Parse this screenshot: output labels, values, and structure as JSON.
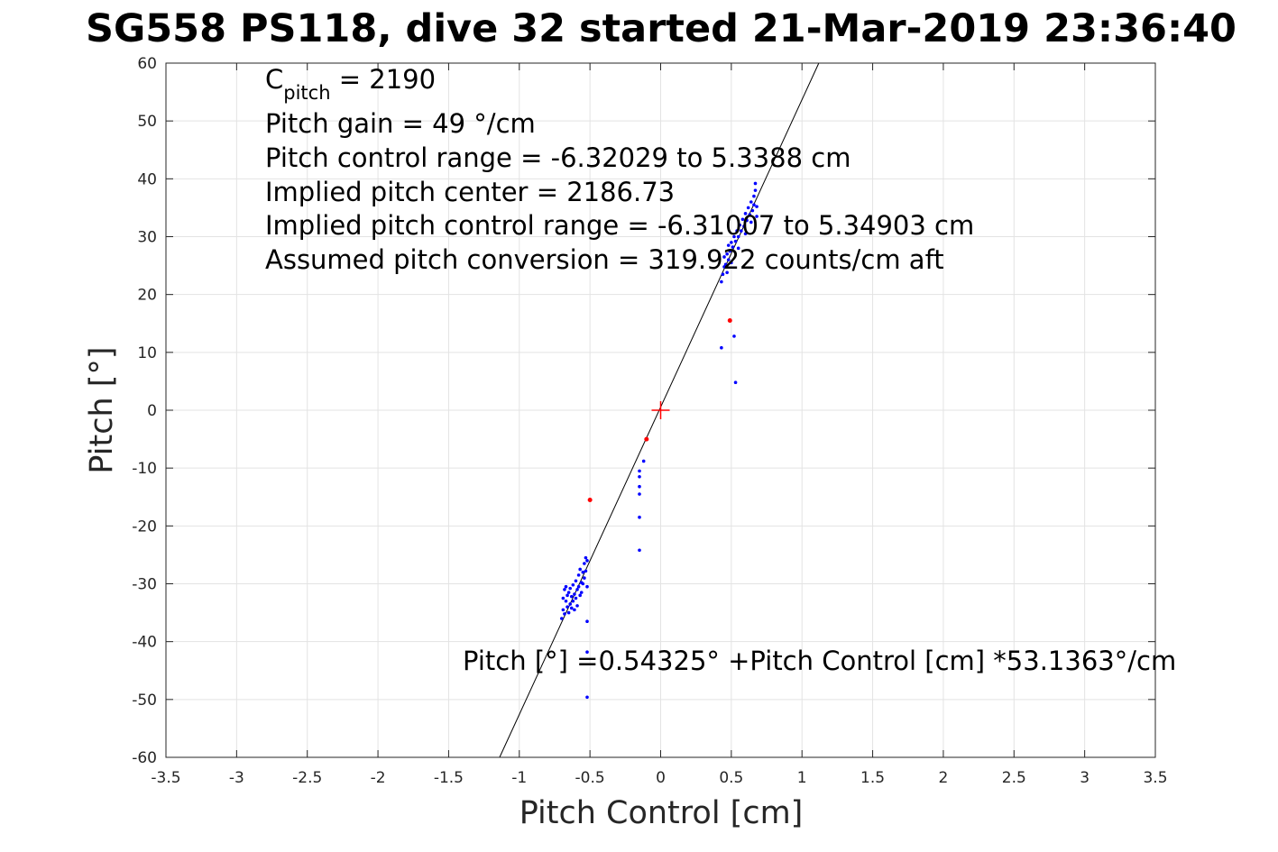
{
  "chart_data": {
    "type": "scatter",
    "title": "SG558 PS118, dive 32 started 21-Mar-2019 23:36:40",
    "xlabel": "Pitch Control [cm]",
    "ylabel": "Pitch [°]",
    "xlim": [
      -3.5,
      3.5
    ],
    "ylim": [
      -60,
      60
    ],
    "xticks": [
      -3.5,
      -3,
      -2.5,
      -2,
      -1.5,
      -1,
      -0.5,
      0,
      0.5,
      1,
      1.5,
      2,
      2.5,
      3,
      3.5
    ],
    "yticks": [
      -60,
      -50,
      -40,
      -30,
      -20,
      -10,
      0,
      10,
      20,
      30,
      40,
      50,
      60
    ],
    "xtick_labels": [
      "-3.5",
      "-3",
      "-2.5",
      "-2",
      "-1.5",
      "-1",
      "-0.5",
      "0",
      "0.5",
      "1",
      "1.5",
      "2",
      "2.5",
      "3",
      "3.5"
    ],
    "ytick_labels": [
      "-60",
      "-50",
      "-40",
      "-30",
      "-20",
      "-10",
      "0",
      "10",
      "20",
      "30",
      "40",
      "50",
      "60"
    ],
    "grid": true,
    "annotations": {
      "cpitch_main": "C",
      "cpitch_sub": "pitch",
      "cpitch_value": " = 2190",
      "lines": [
        "Pitch gain = 49 °/cm",
        "Pitch control range = -6.32029 to 5.3388 cm",
        "Implied pitch center = 2186.73",
        "Implied pitch control range = -6.31007 to 5.34903 cm",
        "Assumed pitch conversion = 319.922 counts/cm aft"
      ],
      "fit_equation": "Pitch [°] =0.54325° +Pitch Control [cm] *53.1363°/cm"
    },
    "fit_line": {
      "intercept": 0.54325,
      "slope": 53.1363,
      "color": "#000000"
    },
    "center_marker": {
      "x": 0,
      "y": 0,
      "color": "#ff0000"
    },
    "series": [
      {
        "color": "#0000ff",
        "points": [
          [
            -0.7,
            -36.0
          ],
          [
            -0.69,
            -34.5
          ],
          [
            -0.69,
            -32.5
          ],
          [
            -0.68,
            -31.0
          ],
          [
            -0.68,
            -35.2
          ],
          [
            -0.67,
            -33.0
          ],
          [
            -0.67,
            -30.5
          ],
          [
            -0.66,
            -34.0
          ],
          [
            -0.66,
            -32.0
          ],
          [
            -0.65,
            -35.0
          ],
          [
            -0.65,
            -31.5
          ],
          [
            -0.64,
            -33.5
          ],
          [
            -0.64,
            -30.8
          ],
          [
            -0.63,
            -34.2
          ],
          [
            -0.63,
            -32.2
          ],
          [
            -0.62,
            -30.2
          ],
          [
            -0.62,
            -33.0
          ],
          [
            -0.61,
            -31.8
          ],
          [
            -0.61,
            -34.5
          ],
          [
            -0.6,
            -29.5
          ],
          [
            -0.6,
            -32.5
          ],
          [
            -0.59,
            -31.0
          ],
          [
            -0.59,
            -33.8
          ],
          [
            -0.58,
            -28.5
          ],
          [
            -0.58,
            -30.5
          ],
          [
            -0.57,
            -32.0
          ],
          [
            -0.57,
            -27.5
          ],
          [
            -0.56,
            -29.8
          ],
          [
            -0.56,
            -31.5
          ],
          [
            -0.55,
            -28.0
          ],
          [
            -0.55,
            -30.0
          ],
          [
            -0.54,
            -26.5
          ],
          [
            -0.54,
            -29.0
          ],
          [
            -0.53,
            -25.5
          ],
          [
            -0.53,
            -27.8
          ],
          [
            -0.52,
            -26.0
          ],
          [
            -0.52,
            -30.5
          ],
          [
            -0.52,
            -36.5
          ],
          [
            -0.52,
            -41.8
          ],
          [
            -0.52,
            -49.6
          ],
          [
            -0.15,
            -10.5
          ],
          [
            -0.15,
            -11.5
          ],
          [
            -0.15,
            -13.2
          ],
          [
            -0.15,
            -14.5
          ],
          [
            -0.15,
            -18.5
          ],
          [
            -0.15,
            -24.2
          ],
          [
            -0.12,
            -8.8
          ],
          [
            0.43,
            10.8
          ],
          [
            0.53,
            4.8
          ],
          [
            0.52,
            12.8
          ],
          [
            0.43,
            22.2
          ],
          [
            0.44,
            23.5
          ],
          [
            0.45,
            24.8
          ],
          [
            0.45,
            26.5
          ],
          [
            0.46,
            25.2
          ],
          [
            0.47,
            27.0
          ],
          [
            0.48,
            26.0
          ],
          [
            0.48,
            28.5
          ],
          [
            0.49,
            27.5
          ],
          [
            0.5,
            29.0
          ],
          [
            0.51,
            28.2
          ],
          [
            0.52,
            30.0
          ],
          [
            0.53,
            29.2
          ],
          [
            0.54,
            31.0
          ],
          [
            0.55,
            30.0
          ],
          [
            0.56,
            32.0
          ],
          [
            0.57,
            31.0
          ],
          [
            0.58,
            33.0
          ],
          [
            0.59,
            31.8
          ],
          [
            0.6,
            34.0
          ],
          [
            0.61,
            32.8
          ],
          [
            0.62,
            35.0
          ],
          [
            0.63,
            33.8
          ],
          [
            0.64,
            36.0
          ],
          [
            0.65,
            34.5
          ],
          [
            0.66,
            37.0
          ],
          [
            0.66,
            35.5
          ],
          [
            0.67,
            38.0
          ],
          [
            0.67,
            39.2
          ],
          [
            0.68,
            35.2
          ],
          [
            0.68,
            33.5
          ],
          [
            0.5,
            25.5
          ],
          [
            0.47,
            23.8
          ],
          [
            0.55,
            28.0
          ],
          [
            0.6,
            30.5
          ],
          [
            0.64,
            32.5
          ]
        ]
      },
      {
        "color": "#ff0000",
        "points": [
          [
            -0.5,
            -15.5
          ],
          [
            -0.1,
            -5.0
          ],
          [
            0.49,
            15.5
          ]
        ]
      }
    ]
  }
}
